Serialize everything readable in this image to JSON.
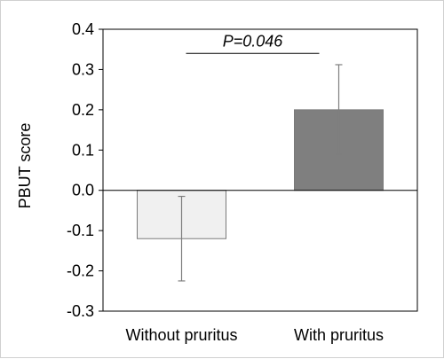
{
  "chart_data": {
    "type": "bar",
    "title": "",
    "xlabel": "",
    "ylabel": "PBUT score",
    "ylim": [
      -0.3,
      0.4
    ],
    "yticks": [
      0.4,
      0.3,
      0.2,
      0.1,
      0.0,
      -0.1,
      -0.2,
      -0.3
    ],
    "ytick_labels": [
      "0.4",
      "0.3",
      "0.2",
      "0.1",
      "0.0",
      "-0.1",
      "-0.2",
      "-0.3"
    ],
    "categories": [
      "Without pruritus",
      "With pruritus"
    ],
    "values": [
      -0.12,
      0.2
    ],
    "error_low": [
      -0.225,
      0.09
    ],
    "error_high": [
      -0.015,
      0.312
    ],
    "bar_colors": [
      "#f0f0f0",
      "#7f7f7f"
    ],
    "grid": false,
    "legend": "none",
    "annotation": {
      "text": "P=0.046"
    }
  }
}
